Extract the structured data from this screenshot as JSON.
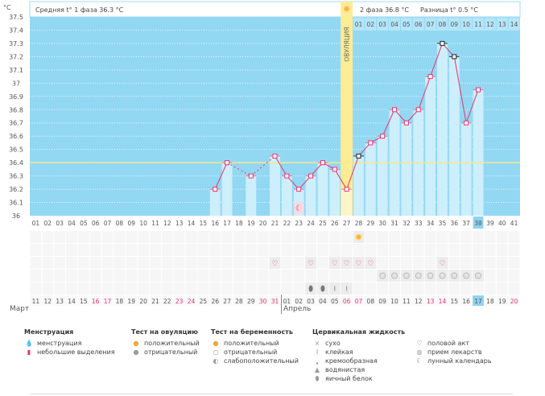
{
  "header": {
    "unit": "°C",
    "phase1": "Средняя t° 1 фаза 36.3 °C",
    "phase2": "2 фаза 36.8 °C",
    "diff": "Разница t° 0.5 °C",
    "ovulation": "ОВУЛЯЦИЯ"
  },
  "colors": {
    "background": "#93d8f3",
    "bar": "#cdeefb",
    "line": "#e8336f",
    "coverline": "#f7e98a",
    "ovulation": "#fdec94",
    "weekend": "#e8336f",
    "highlight": "#8fd3f0"
  },
  "chart_data": {
    "type": "line",
    "y_ticks": [
      "37.5",
      "37.4",
      "37.3",
      "37.2",
      "37.1",
      "37",
      "36.9",
      "36.8",
      "36.7",
      "36.6",
      "36.5",
      "36.4",
      "36.3",
      "36.2",
      "36.1",
      "36"
    ],
    "ylim": [
      36,
      37.5
    ],
    "cycle_days": [
      "01",
      "02",
      "03",
      "04",
      "05",
      "06",
      "07",
      "08",
      "09",
      "10",
      "11",
      "12",
      "13",
      "14",
      "15",
      "16",
      "17",
      "18",
      "19",
      "20",
      "21",
      "22",
      "23",
      "24",
      "25",
      "26",
      "27",
      "28",
      "29",
      "30",
      "31",
      "32",
      "33",
      "34",
      "35",
      "36",
      "37",
      "38",
      "39",
      "40",
      "41"
    ],
    "temperatures": [
      null,
      null,
      null,
      null,
      null,
      null,
      null,
      null,
      null,
      null,
      null,
      null,
      null,
      null,
      null,
      36.2,
      36.4,
      null,
      36.3,
      null,
      36.45,
      36.3,
      36.2,
      36.3,
      36.4,
      36.35,
      36.2,
      36.45,
      36.55,
      36.6,
      36.8,
      36.7,
      36.8,
      37.05,
      37.3,
      37.2,
      36.7,
      36.95,
      null,
      null,
      null
    ],
    "dark_marker_days": [
      28,
      35,
      36
    ],
    "coverline": 36.4,
    "ovulation_day": 27,
    "current_day": 38,
    "phase2_days": [
      "01",
      "02",
      "03",
      "04",
      "05",
      "06",
      "07",
      "08",
      "09",
      "10",
      "11",
      "12",
      "13",
      "14"
    ],
    "grid": true
  },
  "calendar": {
    "dates": [
      "11",
      "12",
      "13",
      "14",
      "15",
      "16",
      "17",
      "18",
      "19",
      "20",
      "21",
      "22",
      "23",
      "24",
      "25",
      "26",
      "27",
      "28",
      "29",
      "30",
      "31",
      "01",
      "02",
      "03",
      "04",
      "05",
      "06",
      "07",
      "08",
      "09",
      "10",
      "11",
      "12",
      "13",
      "14",
      "15",
      "16",
      "17",
      "18",
      "19",
      "20"
    ],
    "weekend_index": [
      5,
      6,
      12,
      13,
      19,
      20,
      26,
      27,
      33,
      34,
      40
    ],
    "today_index": 37,
    "months": [
      "Март",
      "Апрель"
    ]
  },
  "icon_rows": {
    "ovulation_test_positive": [
      28
    ],
    "intercourse": [
      21,
      24,
      26,
      27,
      28,
      29,
      35
    ],
    "medication": [
      30,
      31,
      32,
      33,
      34,
      35,
      36,
      37,
      38
    ],
    "fluid_egg_white": [
      24,
      25
    ],
    "fluid_sticky": [
      26,
      27
    ],
    "moon": [
      23
    ]
  },
  "legend": [
    {
      "title": "Менструация",
      "items": [
        {
          "icon": "drop-icon",
          "glyph": "💧",
          "label": "менструация"
        },
        {
          "icon": "small-drop-icon",
          "glyph": "▮",
          "label": "небольшие выделения"
        }
      ]
    },
    {
      "title": "Тест на овуляцию",
      "items": [
        {
          "icon": "sun-icon",
          "glyph": "●",
          "label": "положительный"
        },
        {
          "icon": "sun-gray-icon",
          "glyph": "●",
          "label": "отрицательный"
        }
      ]
    },
    {
      "title": "Тест на беременность",
      "items": [
        {
          "icon": "test-positive-icon",
          "glyph": "●",
          "label": "положительный"
        },
        {
          "icon": "test-negative-icon",
          "glyph": "○",
          "label": "отрицательный"
        },
        {
          "icon": "test-weak-icon",
          "glyph": "◐",
          "label": "слабоположительный"
        }
      ]
    },
    {
      "title": "Цервикальная жидкость",
      "items": [
        {
          "icon": "dry-icon",
          "glyph": "×",
          "label": "сухо"
        },
        {
          "icon": "sticky-icon",
          "glyph": "I",
          "label": "клейкая"
        },
        {
          "icon": "creamy-icon",
          "glyph": "❟",
          "label": "кремообразная"
        },
        {
          "icon": "watery-icon",
          "glyph": "▲",
          "label": "водянистая"
        },
        {
          "icon": "egg-white-icon",
          "glyph": "⬮",
          "label": "яичный белок"
        }
      ]
    },
    {
      "title": "",
      "items": [
        {
          "icon": "heart-icon",
          "glyph": "♡",
          "label": "половой акт"
        },
        {
          "icon": "pill-icon",
          "glyph": "◍",
          "label": "прием лекарств"
        },
        {
          "icon": "moon-icon",
          "glyph": "☾",
          "label": "лунный календарь"
        }
      ]
    }
  ]
}
